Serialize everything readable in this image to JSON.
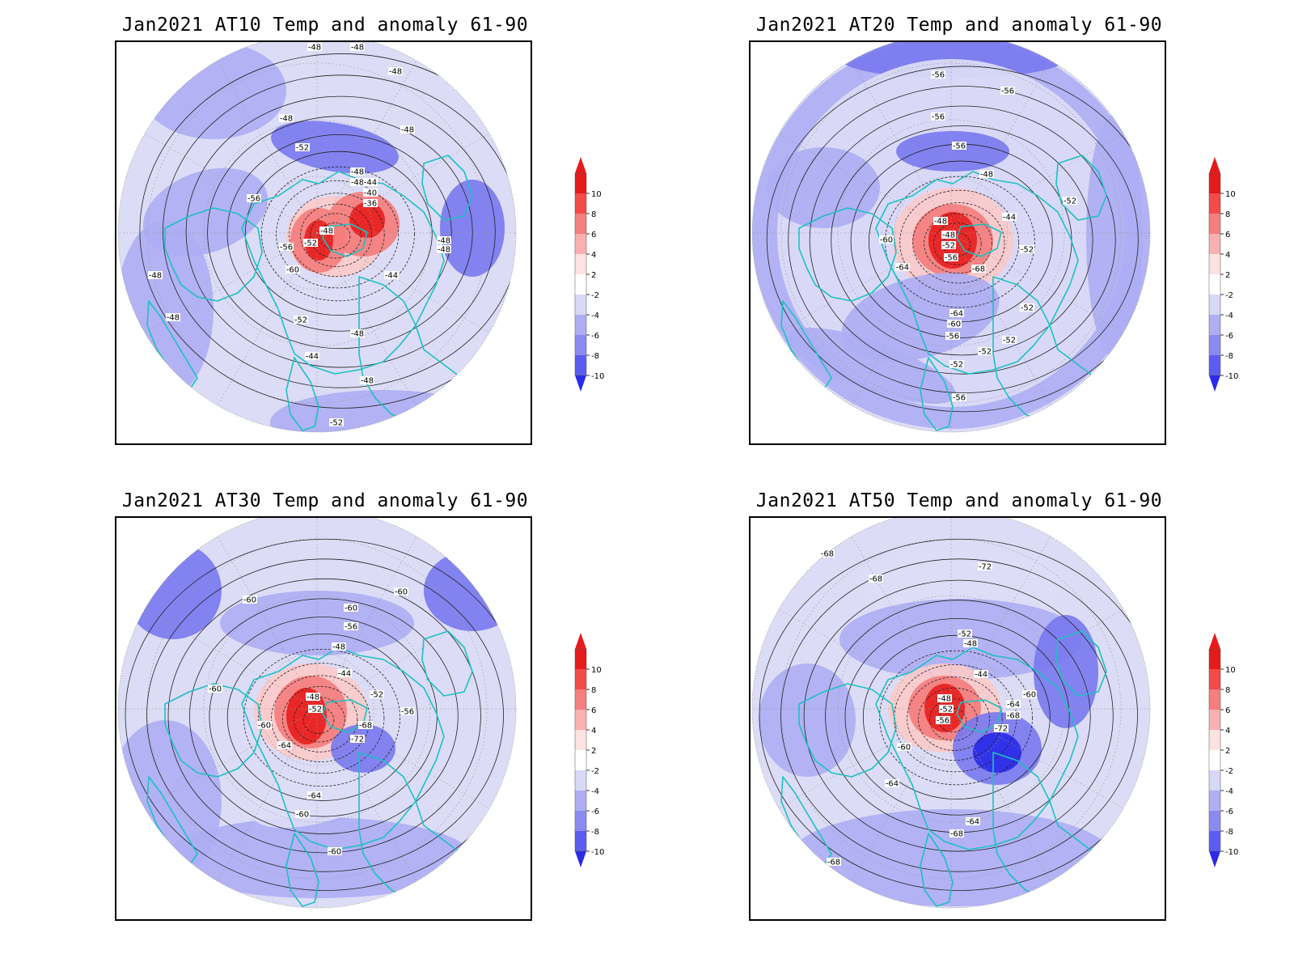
{
  "panels": [
    {
      "title": "Jan2021 AT10 Temp and anomaly 61-90",
      "contour_labels": [
        "-48",
        "-48",
        "-48",
        "-48",
        "-48",
        "-52",
        "-48",
        "-56",
        "-48",
        "-44",
        "-40",
        "-36",
        "-48",
        "-52",
        "-56",
        "-48",
        "-48",
        "-60",
        "-44",
        "-48",
        "-48",
        "-52",
        "-48",
        "-44",
        "-48",
        "-52"
      ]
    },
    {
      "title": "Jan2021 AT20 Temp and anomaly 61-90",
      "contour_labels": [
        "-56",
        "-56",
        "-56",
        "-56",
        "-48",
        "-52",
        "-48",
        "-44",
        "-48",
        "-52",
        "-56",
        "-60",
        "-64",
        "-68",
        "-52",
        "-64",
        "-60",
        "-56",
        "-52",
        "-52",
        "-52",
        "-52",
        "-56"
      ]
    },
    {
      "title": "Jan2021 AT30 Temp and anomaly 61-90",
      "contour_labels": [
        "-60",
        "-60",
        "-60",
        "-56",
        "-48",
        "-44",
        "-60",
        "-48",
        "-52",
        "-52",
        "-56",
        "-60",
        "-68",
        "-64",
        "-72",
        "-64",
        "-60",
        "-60"
      ]
    },
    {
      "title": "Jan2021 AT50 Temp and anomaly 61-90",
      "contour_labels": [
        "-68",
        "-68",
        "-72",
        "-52",
        "-48",
        "-44",
        "-60",
        "-48",
        "-52",
        "-56",
        "-64",
        "-68",
        "-72",
        "-60",
        "-64",
        "-64",
        "-68",
        "-68"
      ]
    }
  ],
  "colorbar": {
    "levels": [
      "10",
      "8",
      "6",
      "4",
      "2",
      "-2",
      "-4",
      "-6",
      "-8",
      "-10"
    ],
    "colors": [
      "#e61a1a",
      "#f44a4a",
      "#f57e7e",
      "#fab0b0",
      "#fde2e2",
      "#ffffff",
      "#d8d8f6",
      "#aeaef3",
      "#8a8af0",
      "#5c5cf0",
      "#2a2ae8"
    ]
  },
  "colors": {
    "coast": "#1cc1c1",
    "warm_strong": "#e82020",
    "warm_mid": "#f57e7e",
    "warm_light": "#fbcaca",
    "cool_light": "#dcdcf6",
    "cool_mid": "#aeaef3",
    "cool_strong": "#7a7aef",
    "cool_deep": "#2a2ae8"
  }
}
